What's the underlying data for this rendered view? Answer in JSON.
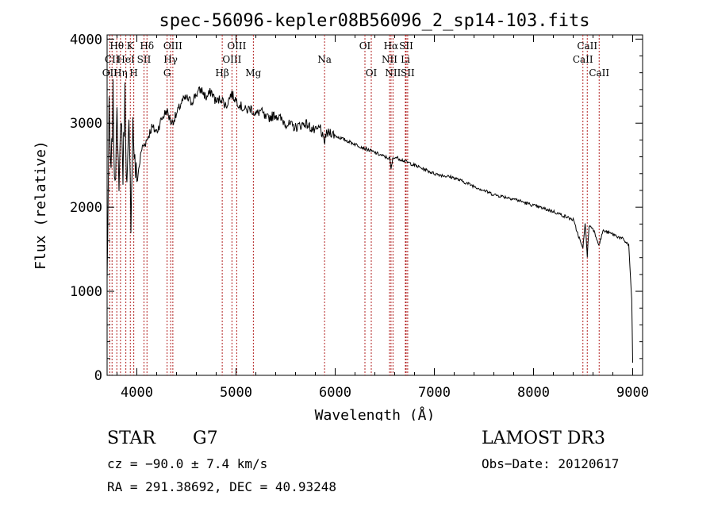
{
  "chart_data": {
    "type": "line",
    "title": "spec-56096-kepler08B56096_2_sp14-103.fits",
    "xlabel": "Wavelength (Å)",
    "ylabel": "Flux (relative)",
    "xlim": [
      3700,
      9100
    ],
    "ylim": [
      0,
      4050
    ],
    "xticks": [
      4000,
      5000,
      6000,
      7000,
      8000,
      9000
    ],
    "yticks": [
      0,
      1000,
      2000,
      3000,
      4000
    ],
    "series": [
      {
        "name": "flux",
        "x": [
          3700,
          3720,
          3740,
          3760,
          3780,
          3800,
          3820,
          3840,
          3860,
          3880,
          3900,
          3920,
          3940,
          3960,
          3980,
          4000,
          4050,
          4100,
          4150,
          4200,
          4250,
          4300,
          4350,
          4400,
          4450,
          4500,
          4550,
          4600,
          4650,
          4700,
          4750,
          4800,
          4850,
          4900,
          4950,
          5000,
          5050,
          5100,
          5150,
          5200,
          5250,
          5300,
          5400,
          5500,
          5600,
          5700,
          5800,
          5850,
          5890,
          5900,
          5950,
          6000,
          6100,
          6200,
          6300,
          6400,
          6500,
          6550,
          6563,
          6580,
          6600,
          6700,
          6800,
          6900,
          7000,
          7200,
          7400,
          7600,
          7800,
          8000,
          8200,
          8400,
          8498,
          8520,
          8542,
          8560,
          8600,
          8662,
          8700,
          8800,
          8900,
          8960,
          8990,
          9000
        ],
        "y": [
          1100,
          3100,
          2300,
          3300,
          2100,
          3400,
          2000,
          3200,
          2400,
          3350,
          2200,
          2900,
          1900,
          3000,
          2500,
          2300,
          2700,
          2800,
          2950,
          2900,
          3050,
          3150,
          3000,
          3100,
          3250,
          3300,
          3250,
          3350,
          3400,
          3300,
          3380,
          3250,
          3300,
          3200,
          3350,
          3280,
          3200,
          3150,
          3180,
          3100,
          3150,
          3050,
          3100,
          3000,
          2950,
          3000,
          2900,
          2950,
          2750,
          2850,
          2900,
          2850,
          2800,
          2750,
          2700,
          2650,
          2600,
          2580,
          2450,
          2570,
          2600,
          2550,
          2500,
          2450,
          2400,
          2350,
          2250,
          2150,
          2100,
          2020,
          1950,
          1850,
          1500,
          1820,
          1420,
          1780,
          1750,
          1550,
          1720,
          1680,
          1620,
          1550,
          900,
          150
        ]
      }
    ],
    "lines": [
      {
        "label": "Hθ",
        "wavelength": 3798,
        "row": 1
      },
      {
        "label": "OII",
        "wavelength": 3727,
        "row": 3
      },
      {
        "label": "CII",
        "wavelength": 3750,
        "row": 2
      },
      {
        "label": "Hη",
        "wavelength": 3835,
        "row": 3
      },
      {
        "label": "HeI",
        "wavelength": 3889,
        "row": 2
      },
      {
        "label": "K",
        "wavelength": 3934,
        "row": 1
      },
      {
        "label": "H",
        "wavelength": 3969,
        "row": 3
      },
      {
        "label": "SII",
        "wavelength": 4072,
        "row": 2
      },
      {
        "label": "Hδ",
        "wavelength": 4102,
        "row": 1
      },
      {
        "label": "OIII",
        "wavelength": 4363,
        "row": 1
      },
      {
        "label": "Hγ",
        "wavelength": 4341,
        "row": 2
      },
      {
        "label": "G",
        "wavelength": 4305,
        "row": 3
      },
      {
        "label": "Hβ",
        "wavelength": 4861,
        "row": 3
      },
      {
        "label": "OIII",
        "wavelength": 5007,
        "row": 1
      },
      {
        "label": "OIII",
        "wavelength": 4959,
        "row": 2
      },
      {
        "label": "Mg",
        "wavelength": 5175,
        "row": 3
      },
      {
        "label": "Na",
        "wavelength": 5893,
        "row": 2
      },
      {
        "label": "OI",
        "wavelength": 6300,
        "row": 1
      },
      {
        "label": "OI",
        "wavelength": 6364,
        "row": 3
      },
      {
        "label": "Hα",
        "wavelength": 6563,
        "row": 1
      },
      {
        "label": "NII",
        "wavelength": 6548,
        "row": 2
      },
      {
        "label": "NII",
        "wavelength": 6583,
        "row": 3
      },
      {
        "label": "SII",
        "wavelength": 6716,
        "row": 1
      },
      {
        "label": "Li",
        "wavelength": 6708,
        "row": 2
      },
      {
        "label": "SII",
        "wavelength": 6731,
        "row": 3
      },
      {
        "label": "CaII",
        "wavelength": 8542,
        "row": 1
      },
      {
        "label": "CaII",
        "wavelength": 8498,
        "row": 2
      },
      {
        "label": "CaII",
        "wavelength": 8662,
        "row": 3
      }
    ],
    "grid": false
  },
  "info": {
    "class": "STAR",
    "subclass": "G7",
    "survey": "LAMOST DR3",
    "cz": "cz = −90.0 ± 7.4 km/s",
    "obs_date": "Obs−Date: 20120617",
    "coords": "RA = 291.38692, DEC =  40.93248"
  },
  "colors": {
    "line_marker": "#b22222",
    "spectrum": "#000000"
  }
}
